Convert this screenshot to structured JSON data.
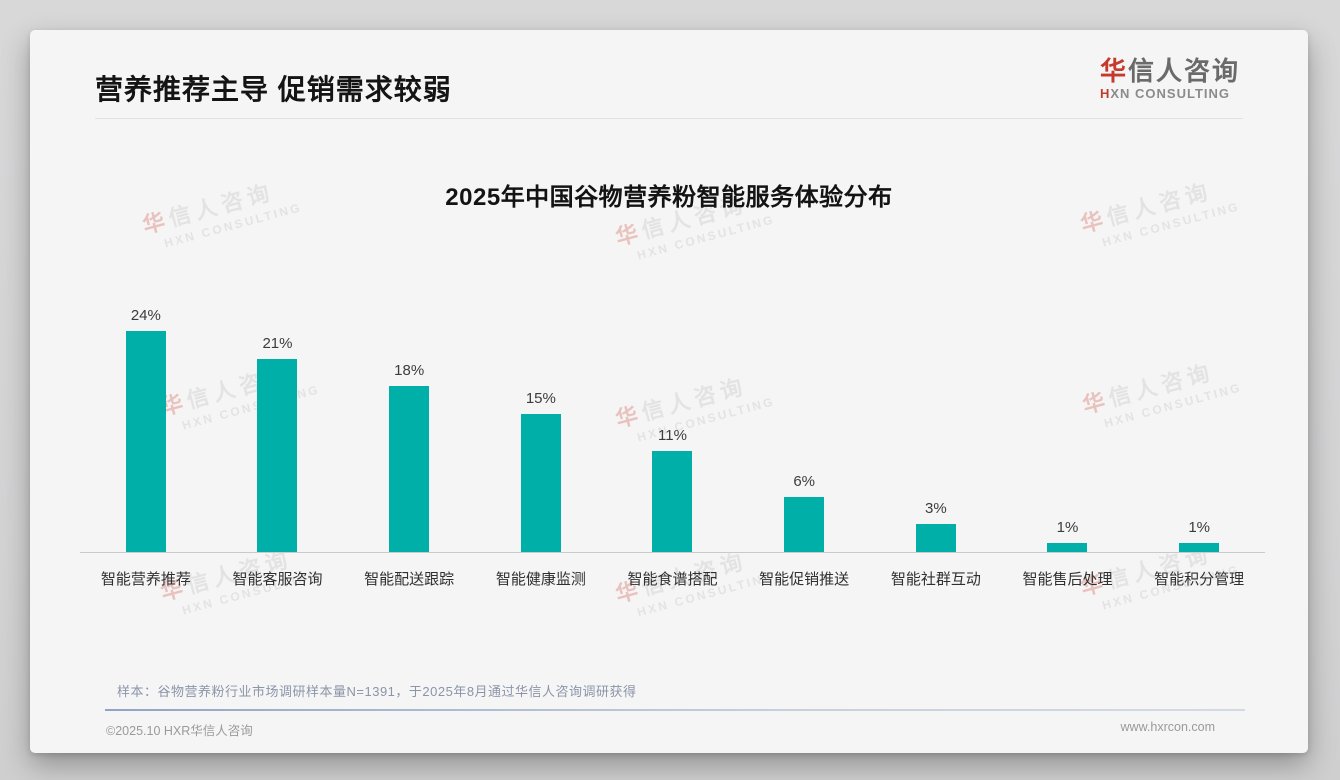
{
  "page": {
    "header": {
      "title": "营养推荐主导 促销需求较弱"
    },
    "logo": {
      "cn_first": "华",
      "cn_rest": "信人咨询",
      "en_first": "H",
      "en_rest": "XN CONSULTING",
      "red": "#c43a2c"
    },
    "watermark": {
      "line1_first": "华",
      "line1_rest": "信人咨询",
      "line2": "HXN CONSULTING"
    },
    "footnote": "样本：谷物营养粉行业市场调研样本量N=1391，于2025年8月通过华信人咨询调研获得",
    "footer": {
      "left": "©2025.10 HXR华信人咨询",
      "right": "www.hxrcon.com"
    }
  },
  "chart_data": {
    "type": "bar",
    "title": "2025年中国谷物营养粉智能服务体验分布",
    "categories": [
      "智能营养推荐",
      "智能客服咨询",
      "智能配送跟踪",
      "智能健康监测",
      "智能食谱搭配",
      "智能促销推送",
      "智能社群互动",
      "智能售后处理",
      "智能积分管理"
    ],
    "values": [
      24,
      21,
      18,
      15,
      11,
      6,
      3,
      1,
      1
    ],
    "unit": "%",
    "value_labels": [
      "24%",
      "21%",
      "18%",
      "15%",
      "11%",
      "6%",
      "3%",
      "1%",
      "1%"
    ],
    "xlabel": "",
    "ylabel": "",
    "ylim": [
      0,
      25
    ],
    "grid": false,
    "legend": "none",
    "bar_color": "#00b0a8"
  }
}
